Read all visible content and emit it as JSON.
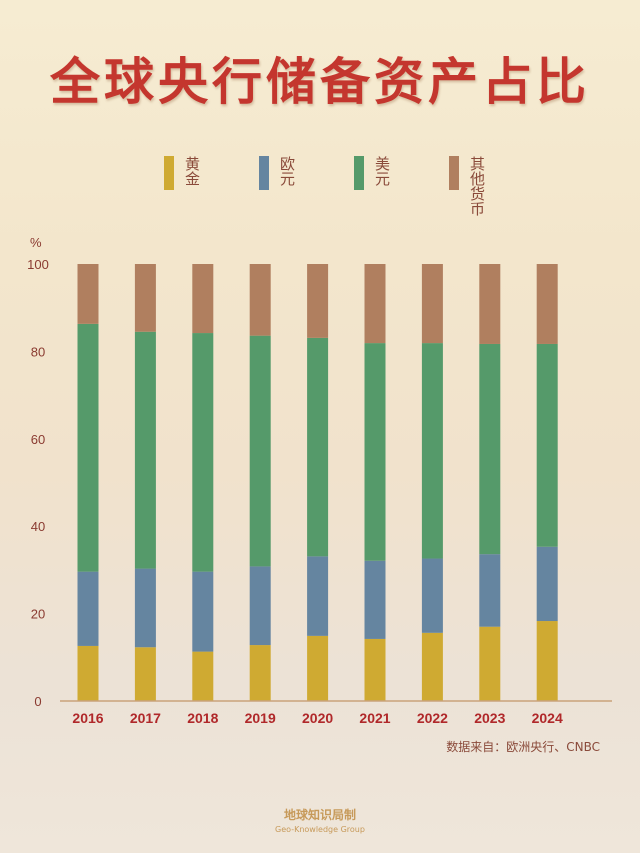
{
  "title": "全球央行储备资产占比",
  "source": "数据来自：欧洲央行、CNBC",
  "footer": {
    "brand": "地球知识局制",
    "brand_en": "Geo-Knowledge Group"
  },
  "chart_data": {
    "type": "bar",
    "stacked": true,
    "title": "全球央行储备资产占比",
    "ylabel": "%",
    "xlabel": "",
    "ylim": [
      0,
      100
    ],
    "yticks": [
      0,
      20,
      40,
      60,
      80,
      100
    ],
    "legend_position": "top",
    "categories": [
      "2016",
      "2017",
      "2018",
      "2019",
      "2020",
      "2021",
      "2022",
      "2023",
      "2024"
    ],
    "series": [
      {
        "name": "黄金",
        "color": "#cfaa32",
        "values": [
          12.6,
          12.3,
          11.3,
          12.8,
          14.9,
          14.2,
          15.6,
          17.0,
          18.3
        ]
      },
      {
        "name": "欧元",
        "color": "#6585a0",
        "values": [
          17.0,
          18.0,
          18.3,
          18.0,
          18.2,
          17.9,
          17.0,
          16.6,
          17.0
        ]
      },
      {
        "name": "美元",
        "color": "#559a6a",
        "values": [
          56.7,
          54.2,
          54.6,
          52.8,
          50.0,
          49.8,
          49.3,
          48.1,
          46.4
        ]
      },
      {
        "name": "其他货币",
        "color": "#b07f5f",
        "values": [
          13.7,
          15.5,
          15.8,
          16.4,
          16.9,
          18.1,
          18.1,
          18.3,
          18.3
        ]
      }
    ]
  }
}
